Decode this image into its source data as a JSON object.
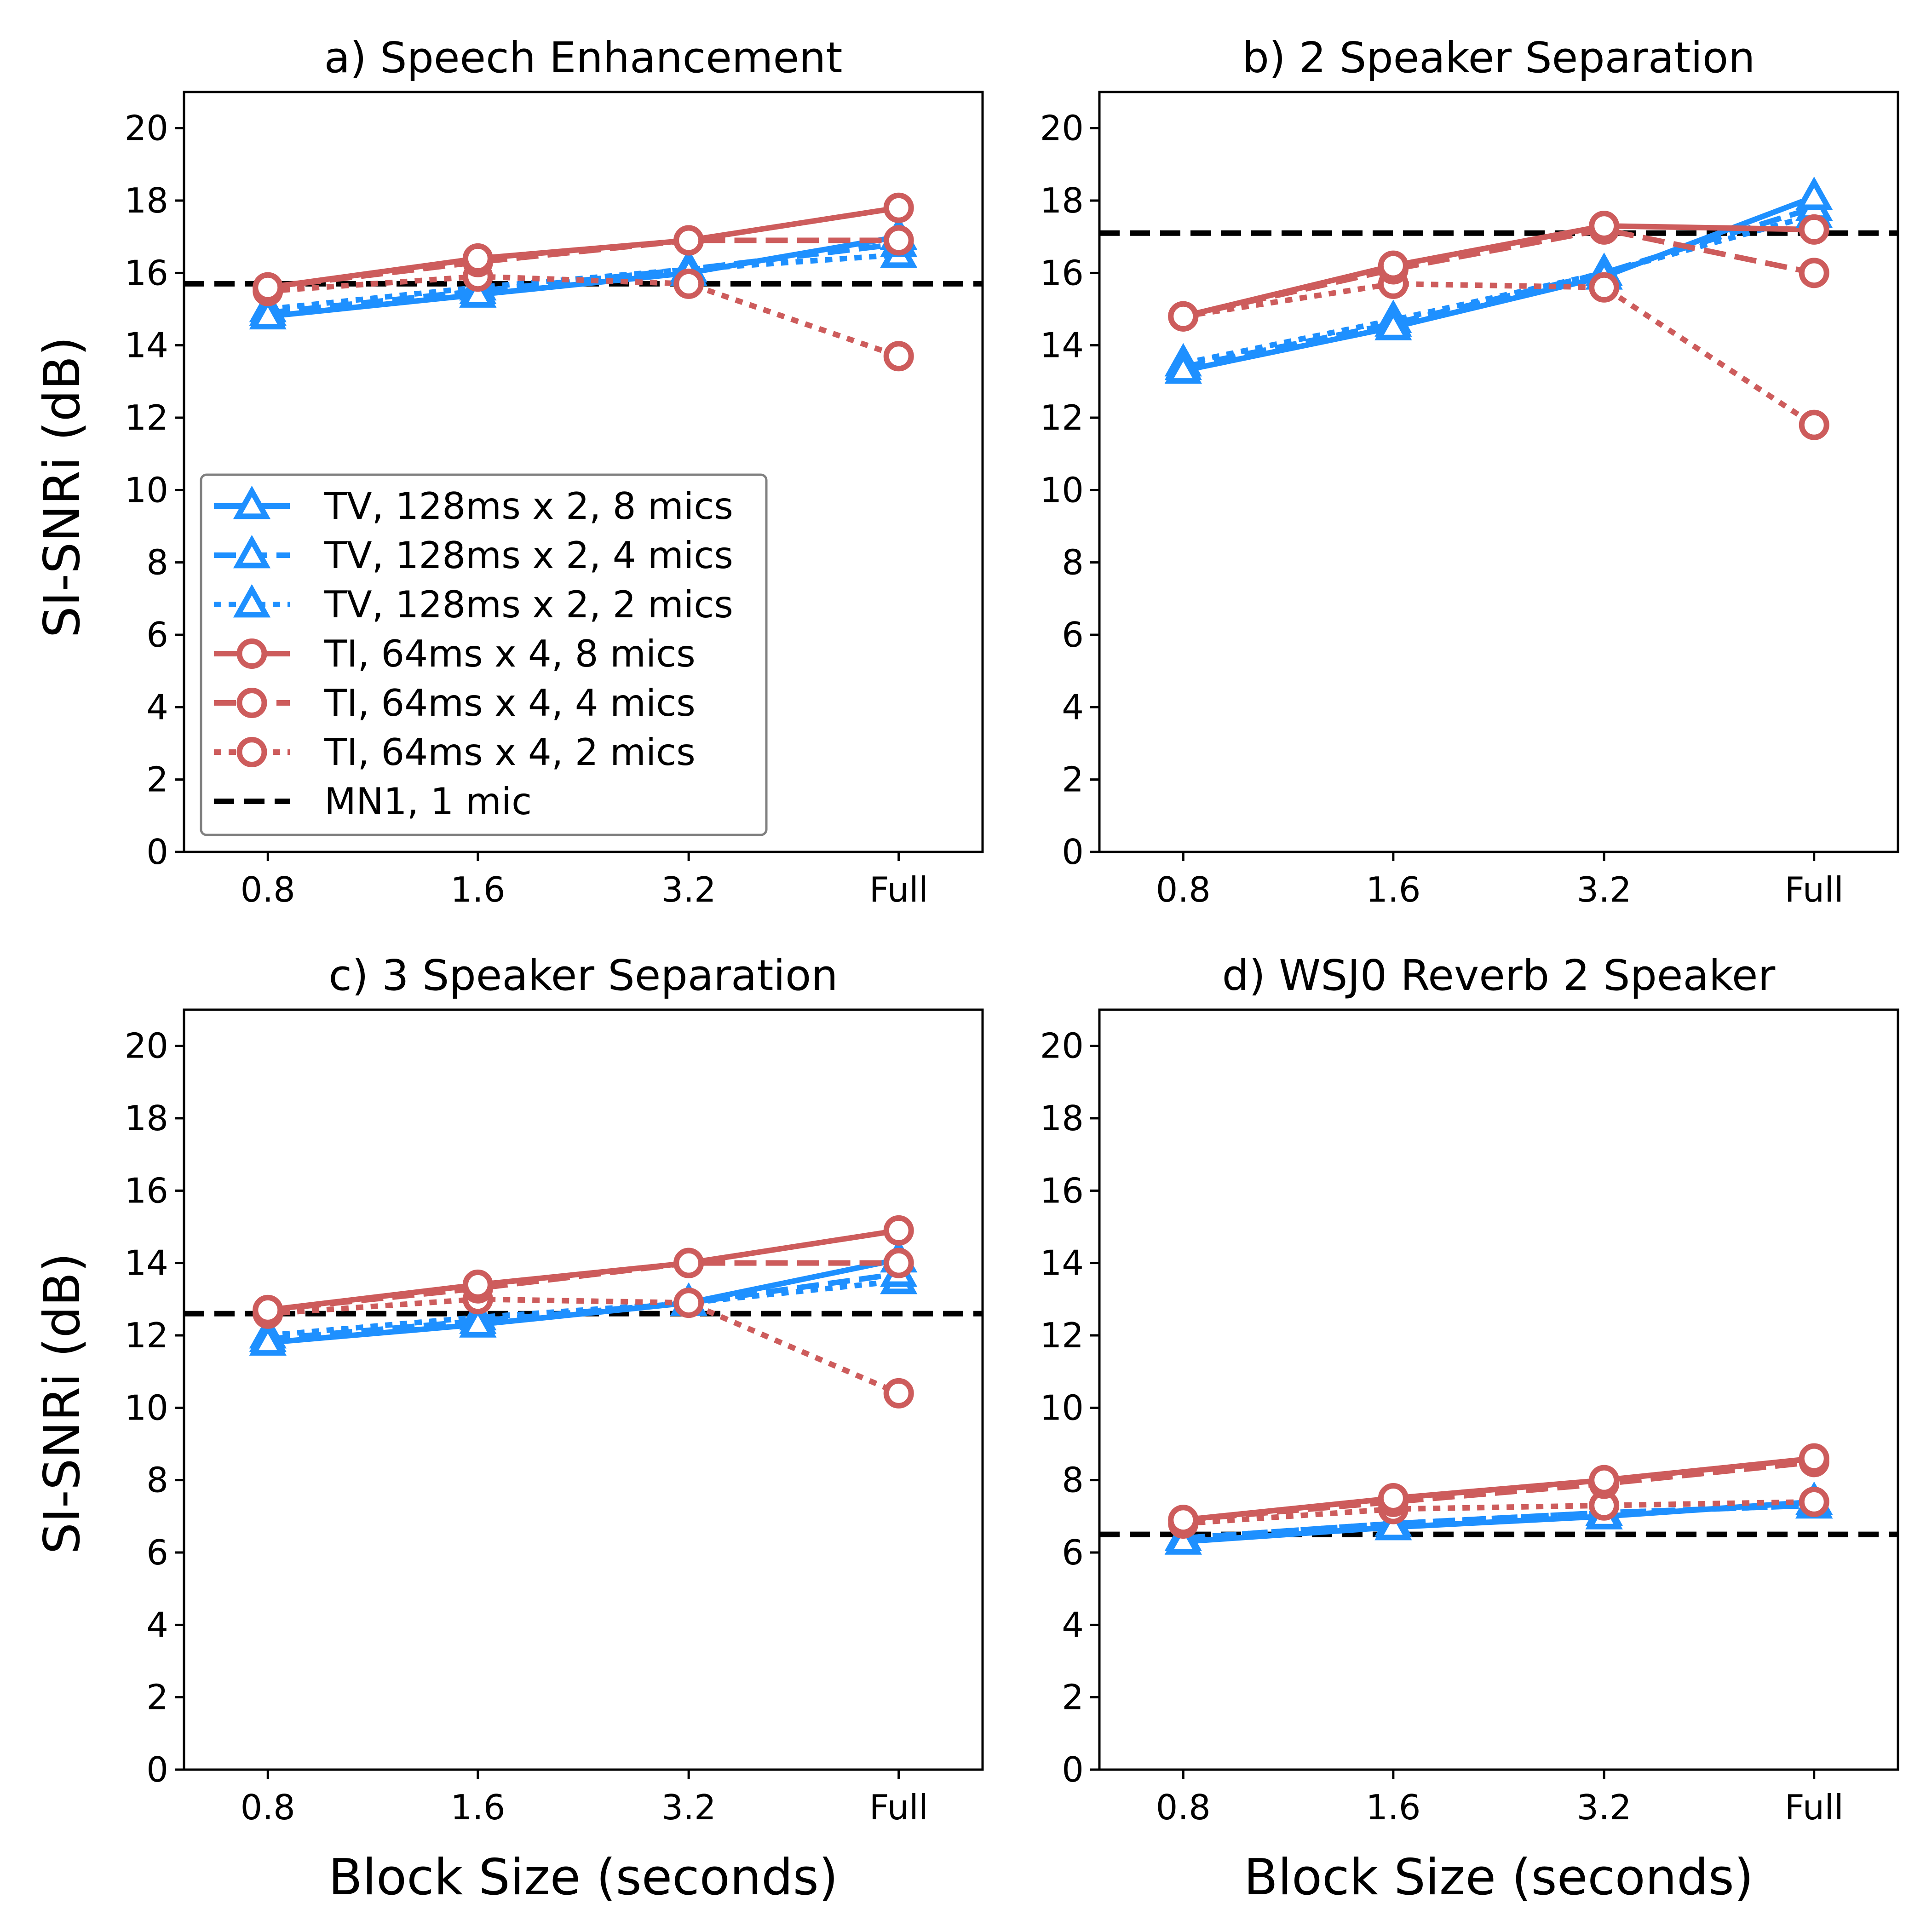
{
  "figure": {
    "y_axis_label": "SI-SNRi (dB)",
    "x_axis_label": "Block Size (seconds)"
  },
  "chart_data": [
    {
      "type": "line",
      "title": "a) Speech Enhancement",
      "categories": [
        "0.8",
        "1.6",
        "3.2",
        "Full"
      ],
      "ylim": [
        0,
        21
      ],
      "yticks": [
        0,
        2,
        4,
        6,
        8,
        10,
        12,
        14,
        16,
        18,
        20
      ],
      "xlabel": "",
      "ylabel": "SI-SNRi (dB)",
      "baseline": {
        "name": "MN1, 1 mic",
        "value": 15.7
      },
      "series": [
        {
          "name": "TV, 128ms x 2, 8 mics",
          "values": [
            14.8,
            15.4,
            16.0,
            17.0
          ]
        },
        {
          "name": "TV, 128ms x 2, 4 mics",
          "values": [
            14.9,
            15.5,
            16.1,
            16.8
          ]
        },
        {
          "name": "TV, 128ms x 2, 2 mics",
          "values": [
            15.0,
            15.6,
            16.1,
            16.5
          ]
        },
        {
          "name": "TI, 64ms x 4, 8 mics",
          "values": [
            15.6,
            16.4,
            16.9,
            17.8
          ]
        },
        {
          "name": "TI, 64ms x 4, 4 mics",
          "values": [
            15.6,
            16.3,
            16.9,
            16.9
          ]
        },
        {
          "name": "TI, 64ms x 4, 2 mics",
          "values": [
            15.5,
            15.9,
            15.7,
            13.7
          ]
        }
      ]
    },
    {
      "type": "line",
      "title": "b) 2 Speaker Separation",
      "categories": [
        "0.8",
        "1.6",
        "3.2",
        "Full"
      ],
      "ylim": [
        0,
        21
      ],
      "yticks": [
        0,
        2,
        4,
        6,
        8,
        10,
        12,
        14,
        16,
        18,
        20
      ],
      "xlabel": "",
      "ylabel": "",
      "baseline": {
        "name": "MN1, 1 mic",
        "value": 17.1
      },
      "series": [
        {
          "name": "TV, 128ms x 2, 8 mics",
          "values": [
            13.3,
            14.5,
            15.9,
            18.1
          ]
        },
        {
          "name": "TV, 128ms x 2, 4 mics",
          "values": [
            13.4,
            14.6,
            16.0,
            17.8
          ]
        },
        {
          "name": "TV, 128ms x 2, 2 mics",
          "values": [
            13.5,
            14.7,
            16.0,
            17.6
          ]
        },
        {
          "name": "TI, 64ms x 4, 8 mics",
          "values": [
            14.8,
            16.2,
            17.3,
            17.2
          ]
        },
        {
          "name": "TI, 64ms x 4, 4 mics",
          "values": [
            14.8,
            16.1,
            17.2,
            16.0
          ]
        },
        {
          "name": "TI, 64ms x 4, 2 mics",
          "values": [
            14.8,
            15.7,
            15.6,
            11.8
          ]
        }
      ]
    },
    {
      "type": "line",
      "title": "c) 3 Speaker Separation",
      "categories": [
        "0.8",
        "1.6",
        "3.2",
        "Full"
      ],
      "ylim": [
        0,
        21
      ],
      "yticks": [
        0,
        2,
        4,
        6,
        8,
        10,
        12,
        14,
        16,
        18,
        20
      ],
      "xlabel": "Block Size (seconds)",
      "ylabel": "SI-SNRi (dB)",
      "baseline": {
        "name": "MN1, 1 mic",
        "value": 12.6
      },
      "series": [
        {
          "name": "TV, 128ms x 2, 8 mics",
          "values": [
            11.8,
            12.3,
            12.9,
            14.1
          ]
        },
        {
          "name": "TV, 128ms x 2, 4 mics",
          "values": [
            11.9,
            12.4,
            12.9,
            13.7
          ]
        },
        {
          "name": "TV, 128ms x 2, 2 mics",
          "values": [
            12.0,
            12.5,
            12.9,
            13.5
          ]
        },
        {
          "name": "TI, 64ms x 4, 8 mics",
          "values": [
            12.7,
            13.4,
            14.0,
            14.9
          ]
        },
        {
          "name": "TI, 64ms x 4, 4 mics",
          "values": [
            12.7,
            13.3,
            14.0,
            14.0
          ]
        },
        {
          "name": "TI, 64ms x 4, 2 mics",
          "values": [
            12.6,
            13.0,
            12.9,
            10.4
          ]
        }
      ]
    },
    {
      "type": "line",
      "title": "d) WSJ0 Reverb 2 Speaker",
      "categories": [
        "0.8",
        "1.6",
        "3.2",
        "Full"
      ],
      "ylim": [
        0,
        21
      ],
      "yticks": [
        0,
        2,
        4,
        6,
        8,
        10,
        12,
        14,
        16,
        18,
        20
      ],
      "xlabel": "Block Size (seconds)",
      "ylabel": "",
      "baseline": {
        "name": "MN1, 1 mic",
        "value": 6.5
      },
      "series": [
        {
          "name": "TV, 128ms x 2, 8 mics",
          "values": [
            6.3,
            6.7,
            7.0,
            7.4
          ]
        },
        {
          "name": "TV, 128ms x 2, 4 mics",
          "values": [
            6.4,
            6.8,
            7.1,
            7.3
          ]
        },
        {
          "name": "TV, 128ms x 2, 2 mics",
          "values": [
            6.4,
            6.8,
            7.1,
            7.3
          ]
        },
        {
          "name": "TI, 64ms x 4, 8 mics",
          "values": [
            6.9,
            7.5,
            8.0,
            8.6
          ]
        },
        {
          "name": "TI, 64ms x 4, 4 mics",
          "values": [
            6.9,
            7.4,
            7.9,
            8.5
          ]
        },
        {
          "name": "TI, 64ms x 4, 2 mics",
          "values": [
            6.8,
            7.2,
            7.3,
            7.4
          ]
        }
      ]
    }
  ],
  "legend": {
    "location": "lower-left of panel a",
    "entries": [
      {
        "label": "TV, 128ms x 2, 8 mics",
        "color": "#1e90ff",
        "linestyle": "solid",
        "marker": "triangle"
      },
      {
        "label": "TV, 128ms x 2, 4 mics",
        "color": "#1e90ff",
        "linestyle": "dashed",
        "marker": "triangle"
      },
      {
        "label": "TV, 128ms x 2, 2 mics",
        "color": "#1e90ff",
        "linestyle": "dotted",
        "marker": "triangle"
      },
      {
        "label": "TI, 64ms x 4, 8 mics",
        "color": "#cd5c5c",
        "linestyle": "solid",
        "marker": "circle"
      },
      {
        "label": "TI, 64ms x 4, 4 mics",
        "color": "#cd5c5c",
        "linestyle": "dashed",
        "marker": "circle"
      },
      {
        "label": "TI, 64ms x 4, 2 mics",
        "color": "#cd5c5c",
        "linestyle": "dotted",
        "marker": "circle"
      },
      {
        "label": "MN1, 1 mic",
        "color": "#000000",
        "linestyle": "dashed",
        "marker": "none"
      }
    ]
  }
}
